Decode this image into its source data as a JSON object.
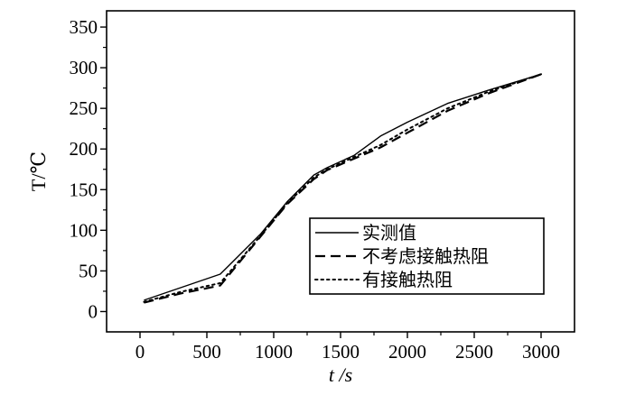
{
  "chart_data": {
    "type": "line",
    "xlabel": "t /s",
    "ylabel": "T/℃",
    "xlim": [
      -250,
      3250
    ],
    "ylim": [
      -25,
      370
    ],
    "x_ticks": [
      0,
      500,
      1000,
      1500,
      2000,
      2500,
      3000
    ],
    "y_ticks": [
      0,
      50,
      100,
      150,
      200,
      250,
      300,
      350
    ],
    "legend_position": "center-right",
    "series": [
      {
        "name": "实测值",
        "style": "solid",
        "color": "#000000",
        "x": [
          30,
          600,
          900,
          1100,
          1300,
          1400,
          1600,
          1800,
          2000,
          2300,
          2600,
          3000
        ],
        "y": [
          14,
          46,
          95,
          135,
          168,
          177,
          192,
          216,
          233,
          256,
          272,
          292
        ]
      },
      {
        "name": "不考虑接触热阻",
        "style": "dashed",
        "color": "#000000",
        "x": [
          30,
          300,
          600,
          900,
          1100,
          1300,
          1400,
          1600,
          1800,
          2000,
          2300,
          2600,
          3000
        ],
        "y": [
          11,
          22,
          32,
          92,
          132,
          163,
          174,
          188,
          202,
          220,
          247,
          268,
          292
        ]
      },
      {
        "name": "有接触热阻",
        "style": "dotted",
        "color": "#000000",
        "x": [
          30,
          300,
          600,
          900,
          1100,
          1300,
          1400,
          1600,
          1800,
          2000,
          2300,
          2600,
          3000
        ],
        "y": [
          12,
          24,
          35,
          93,
          133,
          165,
          175,
          190,
          205,
          224,
          250,
          270,
          292
        ]
      }
    ]
  }
}
